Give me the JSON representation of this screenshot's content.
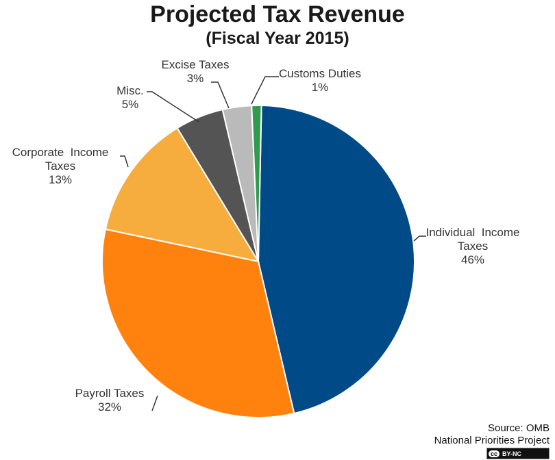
{
  "chart_data": {
    "type": "pie",
    "title": "Projected Tax Revenue",
    "subtitle": "(Fiscal Year 2015)",
    "slices": [
      {
        "label": "Individual  Income Taxes",
        "lines": [
          "Individual  Income",
          "Taxes"
        ],
        "value": 46,
        "pct_label": "46%",
        "color": "#004b87"
      },
      {
        "label": "Payroll Taxes",
        "lines": [
          "Payroll Taxes"
        ],
        "value": 32,
        "pct_label": "32%",
        "color": "#ff820e"
      },
      {
        "label": "Corporate  Income Taxes",
        "lines": [
          "Corporate  Income",
          "Taxes"
        ],
        "value": 13,
        "pct_label": "13%",
        "color": "#f7ac3e"
      },
      {
        "label": "Misc.",
        "lines": [
          "Misc."
        ],
        "value": 5,
        "pct_label": "5%",
        "color": "#545454"
      },
      {
        "label": "Excise Taxes",
        "lines": [
          "Excise Taxes"
        ],
        "value": 3,
        "pct_label": "3%",
        "color": "#bababa"
      },
      {
        "label": "Customs Duties",
        "lines": [
          "Customs Duties"
        ],
        "value": 1,
        "pct_label": "1%",
        "color": "#2e9b4d"
      }
    ],
    "legend": "none (data labels with leader lines)"
  },
  "source": {
    "line1": "Source: OMB",
    "line2": "National Priorities Project",
    "license": "BY-NC",
    "license_icon": "cc"
  }
}
